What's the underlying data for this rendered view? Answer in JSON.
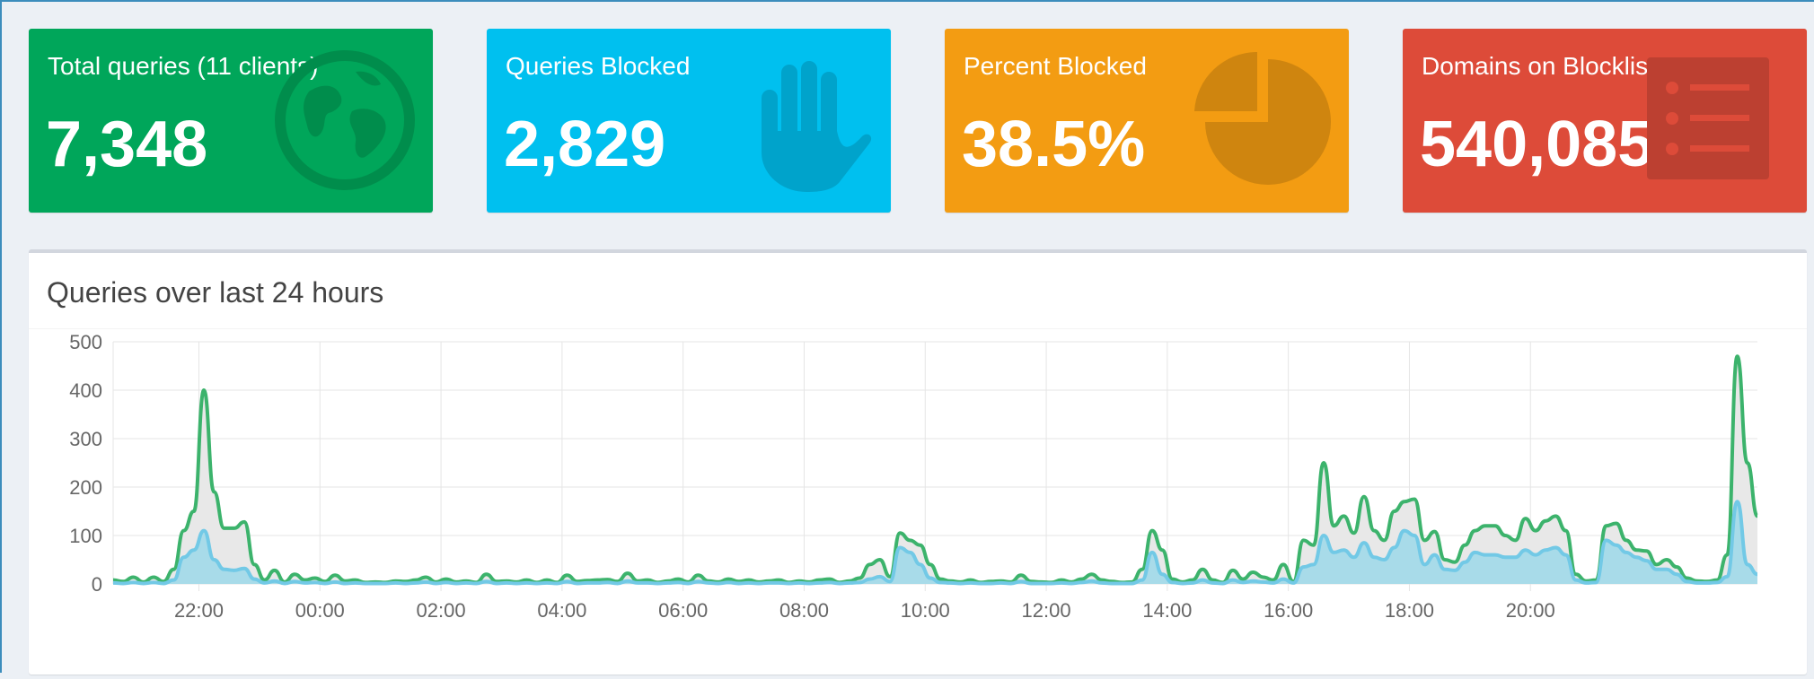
{
  "stats": [
    {
      "label": "Total queries (11 clients)",
      "value": "7,348",
      "color": "#00a65a",
      "icon": "globe-icon",
      "icon_color": "#008d4c"
    },
    {
      "label": "Queries Blocked",
      "value": "2,829",
      "color": "#00c0ef",
      "icon": "hand-icon",
      "icon_color": "#00a3cb"
    },
    {
      "label": "Percent Blocked",
      "value": "38.5%",
      "color": "#f39c12",
      "icon": "pie-chart-icon",
      "icon_color": "#cf850f"
    },
    {
      "label": "Domains on Blocklist",
      "value": "540,085",
      "color": "#dd4b39",
      "icon": "list-icon",
      "icon_color": "#bc4031"
    }
  ],
  "panel": {
    "title": "Queries over last 24 hours"
  },
  "chart_data": {
    "type": "area",
    "x_start": "20:35",
    "interval_minutes": 10,
    "x_ticks": [
      "22:00",
      "00:00",
      "02:00",
      "04:00",
      "06:00",
      "08:00",
      "10:00",
      "12:00",
      "14:00",
      "16:00",
      "18:00",
      "20:00"
    ],
    "y_ticks": [
      0,
      100,
      200,
      300,
      400,
      500
    ],
    "ylim": [
      0,
      500
    ],
    "grid": true,
    "colors": {
      "total": "#3cb36c",
      "total_fill": "#e8e8e8",
      "blocked": "#72c9e6",
      "blocked_fill": "#a8dbe9"
    },
    "series": [
      {
        "key": "total",
        "values": [
          8,
          5,
          14,
          4,
          14,
          5,
          30,
          110,
          150,
          400,
          190,
          115,
          115,
          128,
          40,
          8,
          28,
          4,
          20,
          8,
          12,
          5,
          18,
          6,
          8,
          3,
          4,
          3,
          6,
          5,
          8,
          14,
          4,
          10,
          4,
          6,
          3,
          20,
          5,
          6,
          4,
          8,
          3,
          8,
          3,
          18,
          5,
          7,
          8,
          9,
          5,
          22,
          6,
          8,
          3,
          6,
          10,
          4,
          18,
          6,
          4,
          10,
          5,
          8,
          4,
          6,
          8,
          3,
          6,
          4,
          8,
          10,
          3,
          6,
          12,
          40,
          50,
          15,
          105,
          90,
          80,
          40,
          10,
          6,
          4,
          8,
          3,
          5,
          6,
          4,
          18,
          5,
          4,
          3,
          8,
          4,
          10,
          20,
          8,
          5,
          3,
          4,
          30,
          110,
          70,
          10,
          4,
          8,
          30,
          8,
          3,
          28,
          10,
          24,
          14,
          8,
          40,
          5,
          90,
          80,
          250,
          120,
          140,
          105,
          180,
          110,
          90,
          150,
          170,
          175,
          90,
          108,
          50,
          45,
          80,
          110,
          120,
          120,
          100,
          90,
          135,
          110,
          130,
          140,
          110,
          20,
          6,
          8,
          120,
          125,
          90,
          70,
          68,
          40,
          50,
          35,
          12,
          6,
          5,
          8,
          60,
          470,
          250,
          140
        ]
      },
      {
        "key": "blocked",
        "values": [
          2,
          1,
          3,
          1,
          3,
          1,
          8,
          55,
          70,
          110,
          50,
          30,
          28,
          32,
          10,
          2,
          6,
          1,
          5,
          2,
          3,
          1,
          4,
          1,
          2,
          1,
          1,
          1,
          2,
          1,
          2,
          4,
          1,
          3,
          1,
          2,
          1,
          5,
          1,
          2,
          1,
          2,
          1,
          2,
          1,
          5,
          1,
          2,
          2,
          3,
          1,
          6,
          2,
          2,
          1,
          2,
          3,
          1,
          5,
          2,
          1,
          3,
          1,
          2,
          1,
          2,
          2,
          1,
          2,
          1,
          2,
          3,
          1,
          2,
          3,
          10,
          15,
          5,
          75,
          65,
          40,
          12,
          3,
          2,
          1,
          2,
          1,
          1,
          2,
          1,
          5,
          1,
          1,
          1,
          2,
          1,
          3,
          6,
          2,
          1,
          1,
          1,
          8,
          65,
          20,
          3,
          1,
          2,
          8,
          2,
          1,
          8,
          3,
          6,
          4,
          2,
          10,
          2,
          35,
          40,
          100,
          65,
          70,
          55,
          85,
          55,
          50,
          75,
          110,
          100,
          40,
          60,
          30,
          28,
          45,
          65,
          60,
          60,
          55,
          55,
          70,
          60,
          70,
          75,
          60,
          8,
          2,
          3,
          90,
          80,
          65,
          55,
          48,
          30,
          30,
          20,
          5,
          2,
          2,
          3,
          15,
          170,
          40,
          20
        ]
      }
    ]
  }
}
